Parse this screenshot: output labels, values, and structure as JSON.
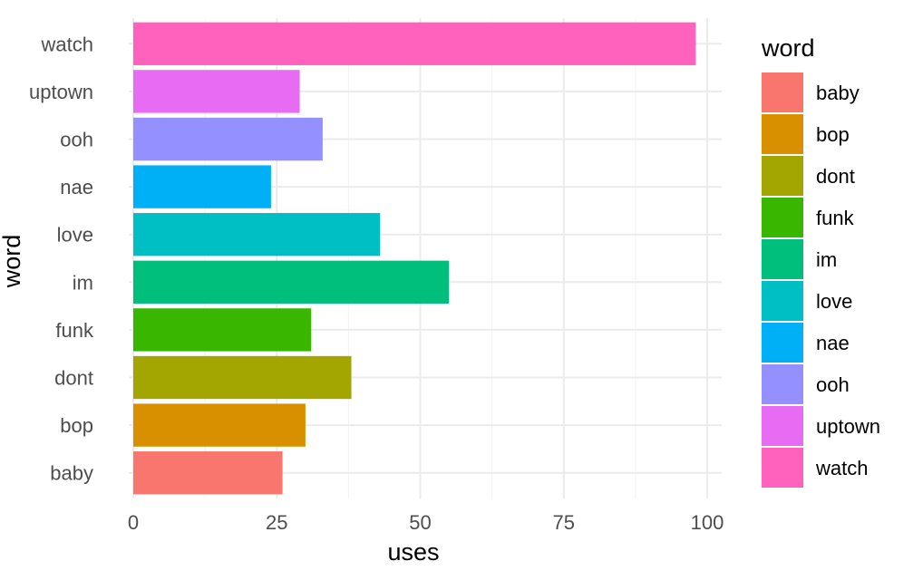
{
  "chart_data": {
    "type": "bar",
    "orientation": "horizontal",
    "categories": [
      "baby",
      "bop",
      "dont",
      "funk",
      "im",
      "love",
      "nae",
      "ooh",
      "uptown",
      "watch"
    ],
    "values": [
      26,
      30,
      38,
      31,
      55,
      43,
      24,
      33,
      29,
      98
    ],
    "colors": [
      "#F8766D",
      "#D89000",
      "#A3A500",
      "#39B600",
      "#00BF7D",
      "#00BFC4",
      "#00B0F6",
      "#9590FF",
      "#E76BF3",
      "#FF62BC"
    ],
    "xlabel": "uses",
    "ylabel": "word",
    "xlim": [
      0,
      100
    ],
    "xticks": [
      0,
      25,
      50,
      75,
      100
    ],
    "xtick_labels": [
      "0",
      "25",
      "50",
      "75",
      "100"
    ],
    "grid": true,
    "legend": {
      "title": "word",
      "position": "right",
      "entries": [
        "baby",
        "bop",
        "dont",
        "funk",
        "im",
        "love",
        "nae",
        "ooh",
        "uptown",
        "watch"
      ]
    }
  }
}
